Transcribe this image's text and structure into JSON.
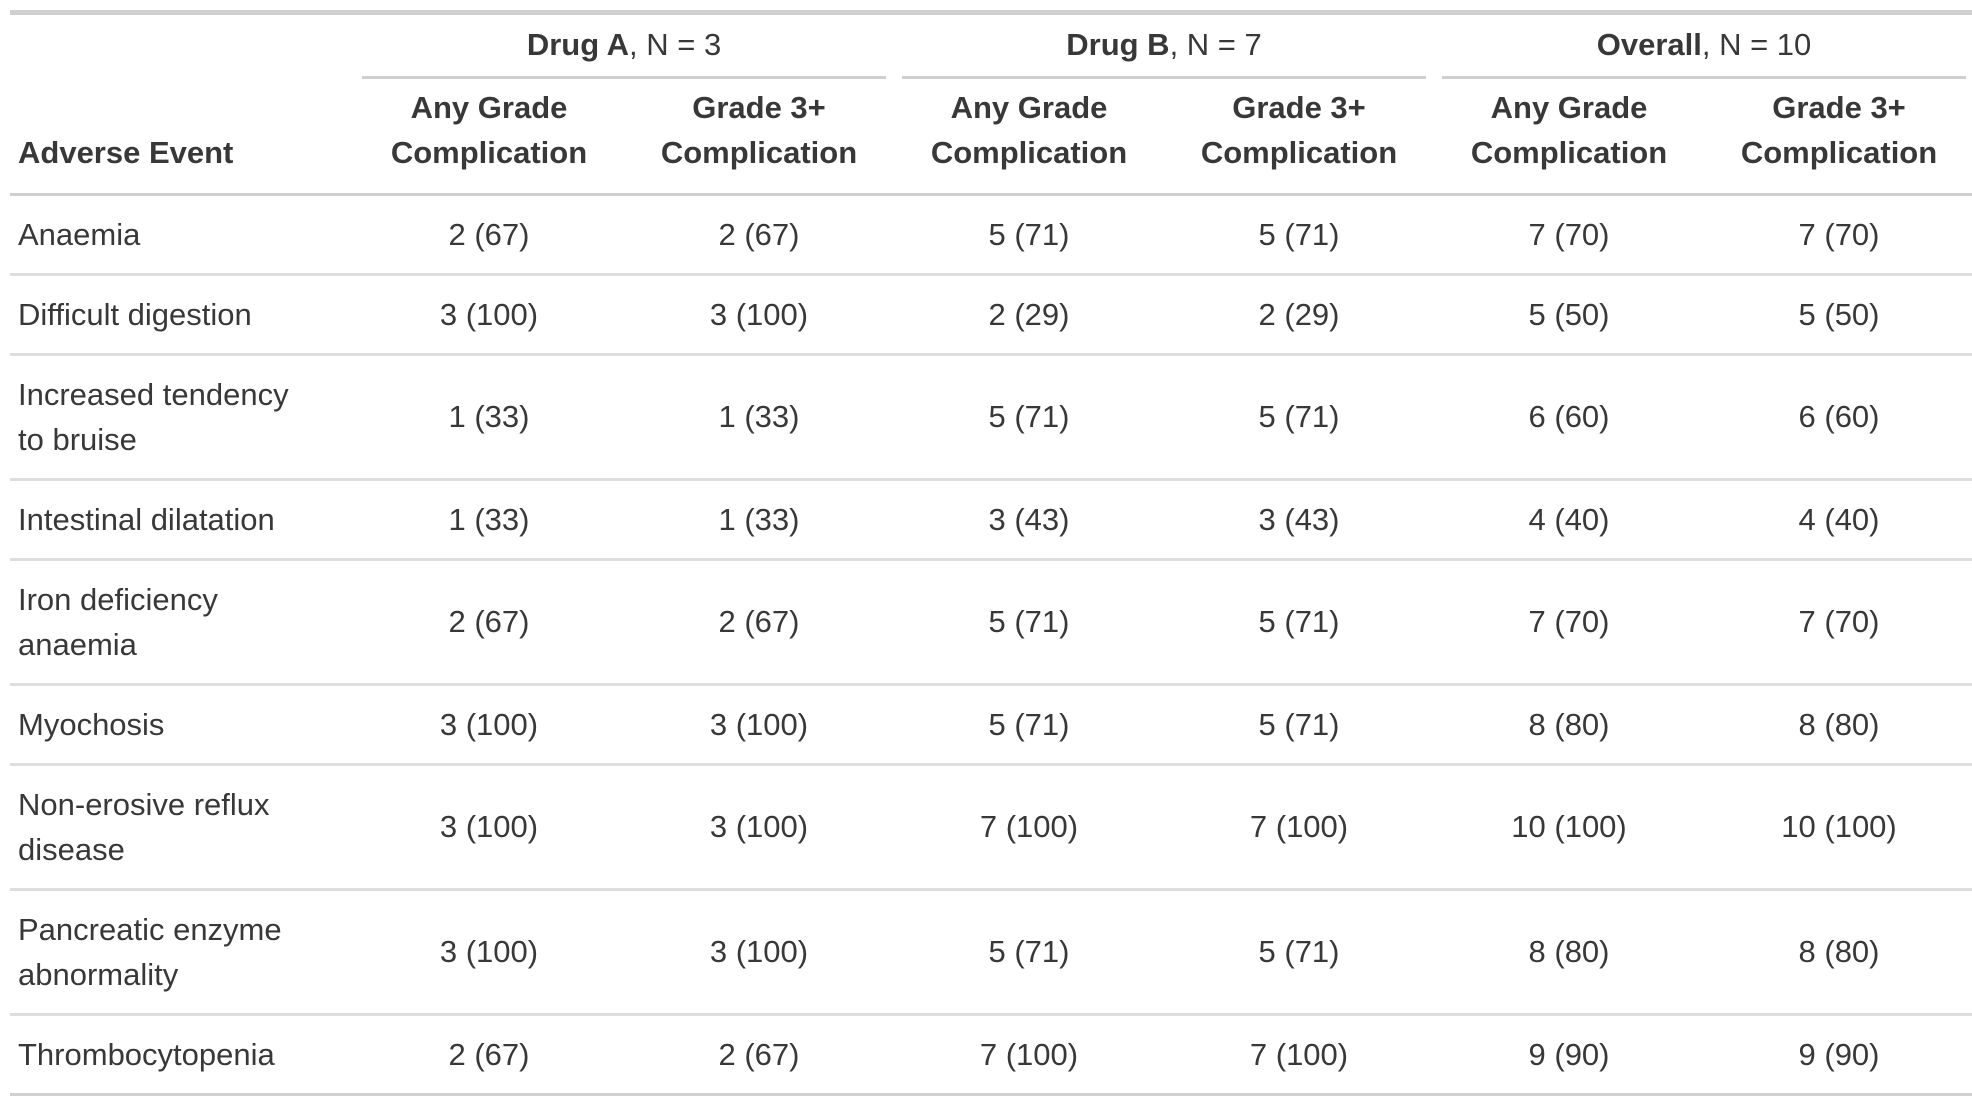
{
  "colors": {
    "text": "#383838",
    "border_strong": "#cfcfcf",
    "border_light": "#dedede",
    "background": "#ffffff"
  },
  "table": {
    "stub_header": "Adverse Event",
    "spanners": [
      {
        "label": "Drug A",
        "suffix": ", N = 3"
      },
      {
        "label": "Drug B",
        "suffix": ", N = 7"
      },
      {
        "label": "Overall",
        "suffix": ", N = 10"
      }
    ],
    "column_headers": [
      "Any Grade Complication",
      "Grade 3+ Complication",
      "Any Grade Complication",
      "Grade 3+ Complication",
      "Any Grade Complication",
      "Grade 3+ Complication"
    ],
    "rows": [
      {
        "label": "Anaemia",
        "values": [
          "2 (67)",
          "2 (67)",
          "5 (71)",
          "5 (71)",
          "7 (70)",
          "7 (70)"
        ]
      },
      {
        "label": "Difficult digestion",
        "values": [
          "3 (100)",
          "3 (100)",
          "2 (29)",
          "2 (29)",
          "5 (50)",
          "5 (50)"
        ]
      },
      {
        "label": "Increased tendency to bruise",
        "values": [
          "1 (33)",
          "1 (33)",
          "5 (71)",
          "5 (71)",
          "6 (60)",
          "6 (60)"
        ]
      },
      {
        "label": "Intestinal dilatation",
        "values": [
          "1 (33)",
          "1 (33)",
          "3 (43)",
          "3 (43)",
          "4 (40)",
          "4 (40)"
        ]
      },
      {
        "label": "Iron deficiency anaemia",
        "values": [
          "2 (67)",
          "2 (67)",
          "5 (71)",
          "5 (71)",
          "7 (70)",
          "7 (70)"
        ]
      },
      {
        "label": "Myochosis",
        "values": [
          "3 (100)",
          "3 (100)",
          "5 (71)",
          "5 (71)",
          "8 (80)",
          "8 (80)"
        ]
      },
      {
        "label": "Non-erosive reflux disease",
        "values": [
          "3 (100)",
          "3 (100)",
          "7 (100)",
          "7 (100)",
          "10 (100)",
          "10 (100)"
        ]
      },
      {
        "label": "Pancreatic enzyme abnormality",
        "values": [
          "3 (100)",
          "3 (100)",
          "5 (71)",
          "5 (71)",
          "8 (80)",
          "8 (80)"
        ]
      },
      {
        "label": "Thrombocytopenia",
        "values": [
          "2 (67)",
          "2 (67)",
          "7 (100)",
          "7 (100)",
          "9 (90)",
          "9 (90)"
        ]
      }
    ]
  }
}
